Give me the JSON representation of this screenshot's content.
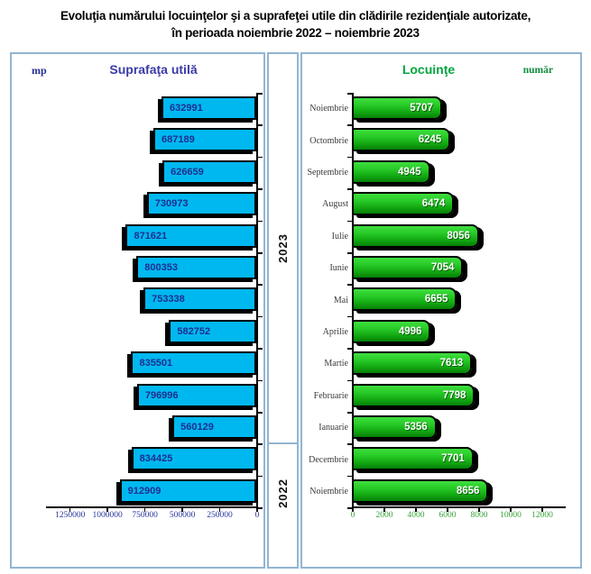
{
  "title": {
    "line1": "Evoluţia numărului locuinţelor şi a suprafeţei utile din clădirile rezidenţiale autorizate,",
    "line2": "în perioada noiembrie 2022 – noiembrie 2023"
  },
  "chart_data": {
    "type": "bar",
    "orientation": "horizontal",
    "layout": "back-to-back pyramid, shared month rows, grid off",
    "title": "Evoluţia numărului locuinţelor şi a suprafeţei utile din clădirile rezidenţiale autorizate, în perioada noiembrie 2022 – noiembrie 2023",
    "categories": [
      "Noiembrie",
      "Octombrie",
      "Septembrie",
      "August",
      "Iulie",
      "Iunie",
      "Mai",
      "Aprilie",
      "Martie",
      "Februarie",
      "Ianuarie",
      "Decembrie",
      "Noiembrie"
    ],
    "year_groups": [
      {
        "label": "2023",
        "row_count": 11
      },
      {
        "label": "2022",
        "row_count": 2
      }
    ],
    "series": [
      {
        "name": "Suprafaţa utilă",
        "unit": "mp",
        "direction": "left",
        "values": [
          632991,
          687189,
          626659,
          730973,
          871621,
          800353,
          753338,
          582752,
          835501,
          796996,
          560129,
          834425,
          912909
        ],
        "axis_ticks": [
          1250000,
          1000000,
          750000,
          500000,
          250000,
          0
        ],
        "xlim": [
          0,
          1250000
        ]
      },
      {
        "name": "Locuinţe",
        "unit": "număr",
        "direction": "right",
        "values": [
          5707,
          6245,
          4945,
          6474,
          8056,
          7054,
          6655,
          4996,
          7613,
          7798,
          5356,
          7701,
          8656
        ],
        "axis_ticks": [
          0,
          2000,
          4000,
          6000,
          8000,
          10000,
          12000
        ],
        "xlim": [
          0,
          12000
        ]
      }
    ]
  },
  "colors": {
    "title_text": "#000000",
    "panel_border": "#92b5d2",
    "left_title": "#3a3aa8",
    "left_unit": "#232d91",
    "left_bar_fill": "#00b8f0",
    "left_bar_label": "#1e2f8f",
    "left_axis_label": "#27359b",
    "right_title": "#00a43f",
    "right_unit": "#108a3e",
    "right_bar_top": "#3ede3e",
    "right_bar_bottom": "#087f08",
    "right_bar_label": "#ffffff",
    "right_axis_label": "#3aa33a",
    "month_label": "#3b3b3b",
    "year_label": "#111111",
    "axis_line": "#000000"
  }
}
